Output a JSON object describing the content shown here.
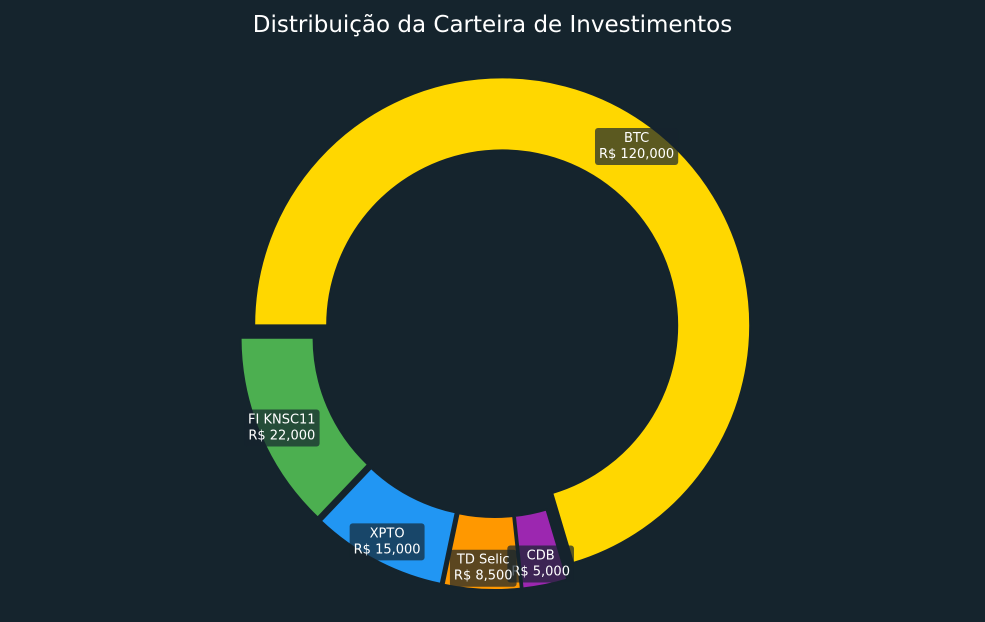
{
  "chart_data": {
    "type": "pie",
    "style": "donut",
    "title": "Distribuição da Carteira de Investimentos",
    "currency_prefix": "R$ ",
    "start_angle_deg": 180,
    "direction": "clockwise",
    "slices": [
      {
        "label": "BTC",
        "value": 120000,
        "value_text": "R$ 120,000",
        "color": "#FFD700"
      },
      {
        "label": "CDB",
        "value": 5000,
        "value_text": "R$ 5,000",
        "color": "#9C27B0"
      },
      {
        "label": "TD Selic",
        "value": 8500,
        "value_text": "R$ 8,500",
        "color": "#FF9800"
      },
      {
        "label": "XPTO",
        "value": 15000,
        "value_text": "R$ 15,000",
        "color": "#2196F3"
      },
      {
        "label": "FI KNSC11",
        "value": 22000,
        "value_text": "R$ 22,000",
        "color": "#4CAF50"
      }
    ],
    "background_color": "#15242d"
  }
}
